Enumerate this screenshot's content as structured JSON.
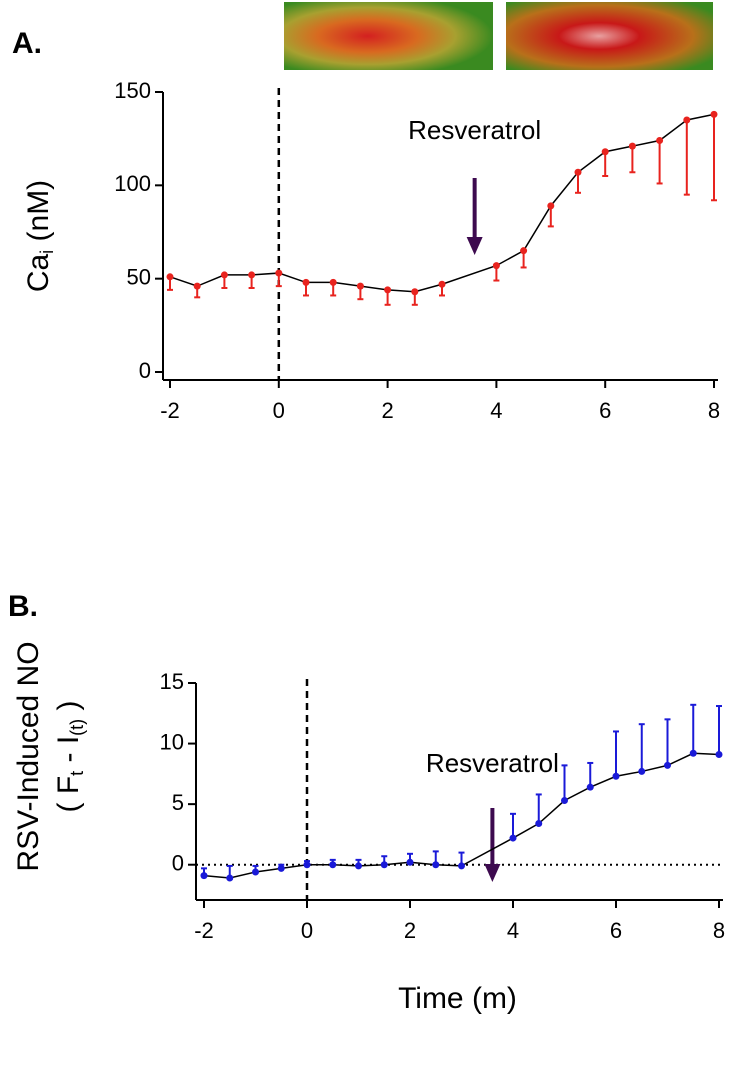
{
  "chart_data": [
    {
      "type": "line",
      "panel_label": "A.",
      "y_label": {
        "main": "Ca",
        "sub": "i",
        "unit": " (nM)"
      },
      "annotation": "Resveratrol",
      "x": [
        -2,
        -1.5,
        -1,
        -0.5,
        0,
        0.5,
        1,
        1.5,
        2,
        2.5,
        3,
        4,
        4.5,
        5,
        5.5,
        6,
        6.5,
        7,
        7.5,
        8
      ],
      "series": [
        {
          "color": "#e8231e",
          "values": [
            51,
            46,
            52,
            52,
            53,
            48,
            48,
            46,
            44,
            43,
            47,
            57,
            65,
            89,
            107,
            118,
            121,
            124,
            135,
            138
          ],
          "errors": [
            7,
            6,
            7,
            7,
            7,
            7,
            7,
            7,
            8,
            7,
            6,
            8,
            9,
            11,
            11,
            13,
            14,
            23,
            40,
            46
          ]
        }
      ],
      "xlim": [
        -2,
        8
      ],
      "xticks": [
        -2,
        0,
        2,
        4,
        6,
        8
      ],
      "ylim": [
        0,
        150
      ],
      "yticks": [
        0,
        50,
        100,
        150
      ]
    },
    {
      "type": "line",
      "panel_label": "B.",
      "y_label": {
        "line1": "RSV-Induced NO",
        "line2": [
          "( F",
          "t",
          " - I",
          "(t)",
          " )"
        ]
      },
      "x_label": "Time (m)",
      "annotation": "Resveratrol",
      "x": [
        -2,
        -1.5,
        -1,
        -0.5,
        0,
        0.5,
        1,
        1.5,
        2,
        2.5,
        3,
        4,
        4.5,
        5,
        5.5,
        6,
        6.5,
        7,
        7.5,
        8
      ],
      "series": [
        {
          "color": "#1a1ad8",
          "values": [
            -0.9,
            -1.1,
            -0.6,
            -0.3,
            0,
            0,
            -0.1,
            0,
            0.2,
            0,
            -0.1,
            2.2,
            3.4,
            5.3,
            6.4,
            7.3,
            7.7,
            8.2,
            9.2,
            9.1
          ],
          "errors": [
            0.6,
            1.0,
            0.5,
            0.3,
            0.3,
            0.4,
            0.5,
            0.7,
            0.7,
            1.1,
            1.1,
            2.0,
            2.4,
            2.9,
            2.0,
            3.7,
            3.9,
            3.8,
            4.0,
            4.0
          ]
        }
      ],
      "xlim": [
        -2,
        8
      ],
      "xticks": [
        -2,
        0,
        2,
        4,
        6,
        8
      ],
      "ylim": [
        -2.5,
        15
      ],
      "yticks": [
        0,
        5,
        10,
        15
      ]
    }
  ]
}
